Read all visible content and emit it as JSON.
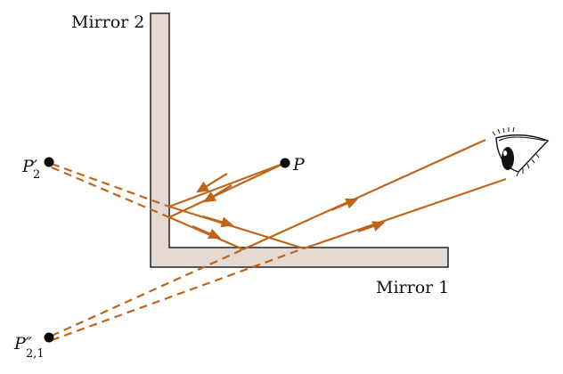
{
  "labels": {
    "mirror1": "Mirror 1",
    "mirror2": "Mirror 2",
    "p": "P",
    "p2_main": "P′",
    "p2_sub": "2",
    "p21_main": "P″",
    "p21_sub": "2,1"
  },
  "colors": {
    "ray": "#c0641a",
    "mirror_fill": "#e6d9d2",
    "mirror_stroke": "#222222",
    "point": "#000000"
  },
  "icons": {
    "eye": "eye-icon"
  }
}
